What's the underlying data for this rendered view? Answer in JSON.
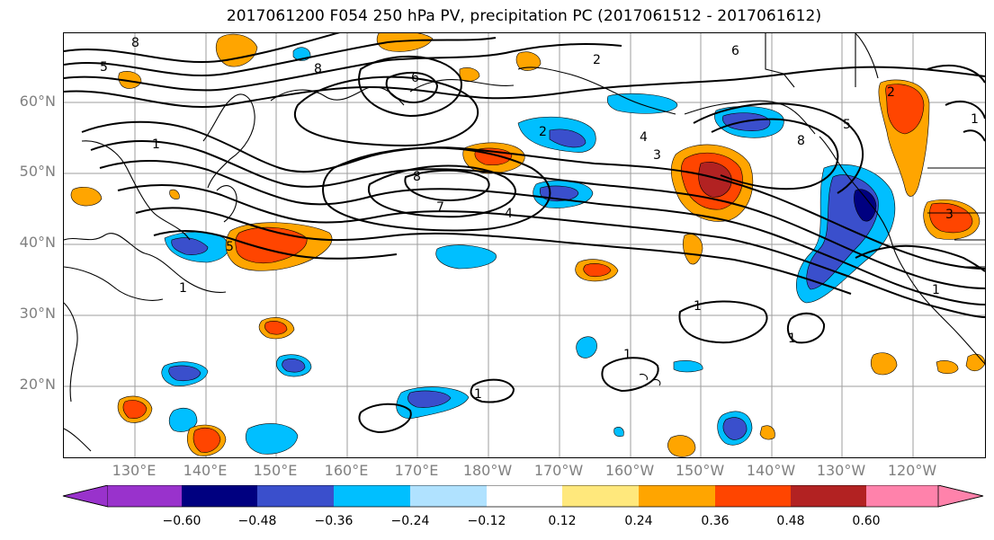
{
  "title": "2017061200 F054 250 hPa PV, precipitation PC (2017061512 - 2017061612)",
  "latitude_labels": [
    "60°N",
    "50°N",
    "40°N",
    "30°N",
    "20°N"
  ],
  "longitude_labels": [
    "130°E",
    "140°E",
    "150°E",
    "160°E",
    "170°E",
    "180°W",
    "170°W",
    "160°W",
    "150°W",
    "140°W",
    "130°W",
    "120°W"
  ],
  "colorbar": {
    "ticks": [
      "−0.60",
      "−0.48",
      "−0.36",
      "−0.24",
      "−0.12",
      "0.12",
      "0.24",
      "0.36",
      "0.48",
      "0.60"
    ],
    "colors": [
      "#9932cc",
      "#000080",
      "#3a4fcc",
      "#00bfff",
      "#b0e2ff",
      "#ffffff",
      "#ffe87c",
      "#ffa500",
      "#ff4500",
      "#b22222",
      "#ff82ab"
    ]
  },
  "contour_labels": [
    "8",
    "5",
    "8",
    "1",
    "6",
    "6",
    "2",
    "8",
    "5",
    "1",
    "3",
    "8",
    "7",
    "4",
    "2",
    "4",
    "3",
    "5",
    "2",
    "1",
    "1",
    "1",
    "1",
    "1",
    "1"
  ]
}
